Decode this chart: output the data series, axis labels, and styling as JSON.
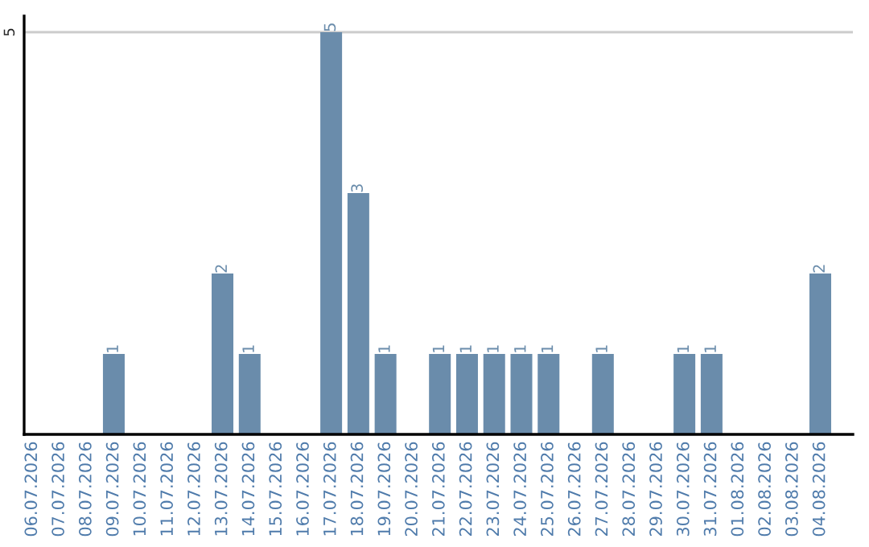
{
  "chart_data": {
    "type": "bar",
    "categories": [
      "06.07.2026",
      "07.07.2026",
      "08.07.2026",
      "09.07.2026",
      "10.07.2026",
      "11.07.2026",
      "12.07.2026",
      "13.07.2026",
      "14.07.2026",
      "15.07.2026",
      "16.07.2026",
      "17.07.2026",
      "18.07.2026",
      "19.07.2026",
      "20.07.2026",
      "21.07.2026",
      "22.07.2026",
      "23.07.2026",
      "24.07.2026",
      "25.07.2026",
      "26.07.2026",
      "27.07.2026",
      "28.07.2026",
      "29.07.2026",
      "30.07.2026",
      "31.07.2026",
      "01.08.2026",
      "02.08.2026",
      "03.08.2026",
      "04.08.2026"
    ],
    "values": [
      0,
      0,
      0,
      1,
      0,
      0,
      0,
      2,
      1,
      0,
      0,
      5,
      3,
      1,
      0,
      1,
      1,
      1,
      1,
      1,
      0,
      1,
      0,
      0,
      1,
      1,
      0,
      0,
      0,
      2
    ],
    "value_labels": [
      null,
      null,
      null,
      "1",
      null,
      null,
      null,
      "2",
      "1",
      null,
      null,
      "5",
      "3",
      "1",
      null,
      "1",
      "1",
      "1",
      "1",
      "1",
      null,
      "1",
      null,
      null,
      "1",
      "1",
      null,
      null,
      null,
      "2"
    ],
    "color": "#6a8cab",
    "ylim": [
      0,
      5.2
    ],
    "yticks": [
      5
    ],
    "grid": "y"
  }
}
